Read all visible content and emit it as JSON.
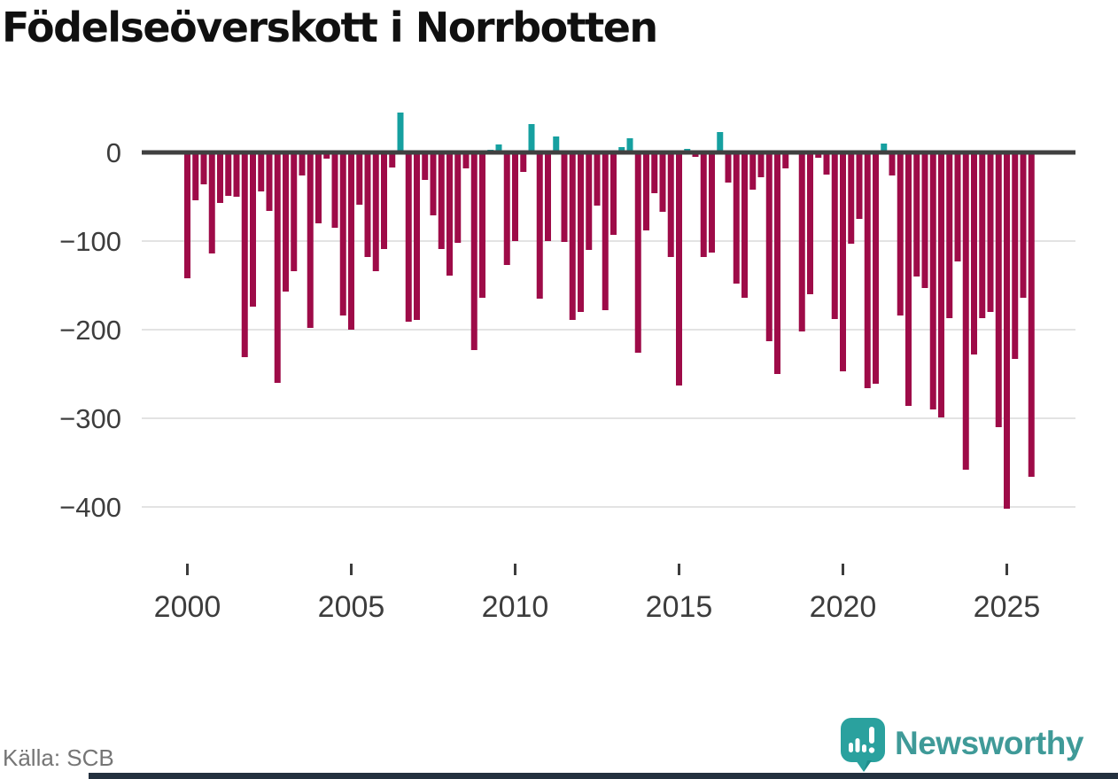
{
  "title": "Födelseöverskott i Norrbotten",
  "source": "Källa: SCB",
  "branding": {
    "name": "Newsworthy"
  },
  "colors": {
    "negative": "#9e0b48",
    "positive": "#16a0a0",
    "grid": "#e3e3e3",
    "zero_line": "#404040",
    "tick_text": "#3d3d3d",
    "title_text": "#101010",
    "source_text": "#757575",
    "brand_teal": "#3f9a98",
    "logo_bubble": "#2aa19e",
    "footer_bar": "#23303e"
  },
  "chart_data": {
    "type": "bar",
    "title": "Födelseöverskott i Norrbotten",
    "series_name": "Födelseöverskott per kvartal",
    "period": "quarterly",
    "start_year": 2000,
    "start_quarter": 1,
    "end_year": 2025,
    "end_quarter": 4,
    "grid": true,
    "ylim": [
      -430,
      60
    ],
    "y_ticks": [
      0,
      -100,
      -200,
      -300,
      -400
    ],
    "y_tick_labels": [
      "0",
      "−100",
      "−200",
      "−300",
      "−400"
    ],
    "x_ticks": [
      2000,
      2005,
      2010,
      2015,
      2020,
      2025
    ],
    "x_tick_labels": [
      "2000",
      "2005",
      "2010",
      "2015",
      "2020",
      "2025"
    ],
    "values": [
      -142,
      -54,
      -36,
      -114,
      -57,
      -49,
      -50,
      -231,
      -174,
      -44,
      -66,
      -260,
      -157,
      -134,
      -26,
      -198,
      -80,
      -7,
      -85,
      -184,
      -200,
      -59,
      -118,
      -134,
      -109,
      -17,
      45,
      -191,
      -189,
      -31,
      -71,
      -109,
      -139,
      -102,
      -18,
      -223,
      -164,
      3,
      9,
      -127,
      -100,
      -22,
      32,
      -165,
      -100,
      18,
      -101,
      -189,
      -180,
      -110,
      -60,
      -178,
      -93,
      6,
      16,
      -226,
      -88,
      -46,
      -67,
      -118,
      -263,
      4,
      -5,
      -118,
      -113,
      23,
      -34,
      -148,
      -164,
      -42,
      -28,
      -213,
      -250,
      -18,
      0,
      -202,
      -160,
      -6,
      -25,
      -188,
      -247,
      -103,
      -75,
      -266,
      -261,
      10,
      -26,
      -184,
      -286,
      -140,
      -153,
      -290,
      -299,
      -187,
      -123,
      -358,
      -228,
      -187,
      -180,
      -310,
      -402,
      -233,
      -164,
      -366
    ]
  }
}
